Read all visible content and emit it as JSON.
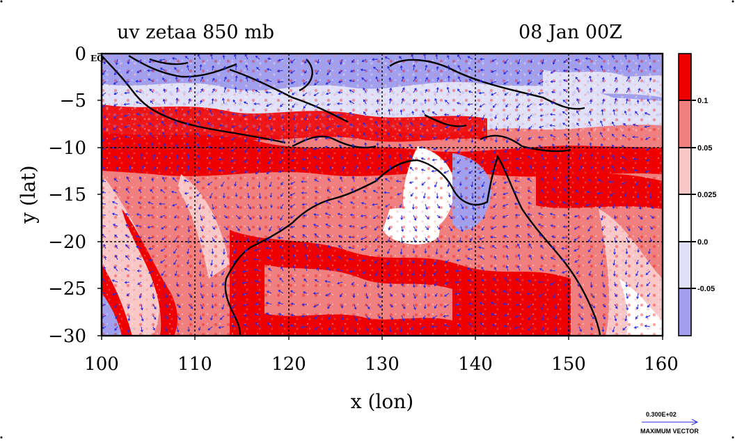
{
  "figure": {
    "title_left": "uv zetaa 850 mb",
    "title_right": "08 Jan 00Z",
    "xlabel": "x (lon)",
    "ylabel": "y (lat)",
    "equator_label": "EQ"
  },
  "axes": {
    "x_ticks": [
      "100",
      "110",
      "120",
      "130",
      "140",
      "150",
      "160"
    ],
    "y_ticks": [
      "0",
      "−5",
      "−10",
      "−15",
      "−20",
      "−25",
      "−30"
    ],
    "x_range": [
      100,
      160
    ],
    "y_range": [
      -30,
      0
    ],
    "grid_lines": "dashed"
  },
  "colorbar": {
    "labels": [
      "0.1",
      "0.05",
      "0.025",
      "0.0",
      "-0.05"
    ],
    "colors": [
      "#ee0000",
      "#f08080",
      "#f8c8c8",
      "#ffffff",
      "#e0e0f8",
      "#a0a0ee"
    ]
  },
  "vector_key": {
    "value": "0.300E+02",
    "label": "MAXIMUM VECTOR",
    "color": "#2a2ae0"
  },
  "colors": {
    "strong_positive": "#ee0000",
    "positive": "#f08080",
    "weak_positive": "#f8c8c8",
    "zero": "#ffffff",
    "weak_negative": "#e0e0f8",
    "negative": "#a0a0ee",
    "coast": "#000000",
    "vectors": "#2a2ae0"
  }
}
